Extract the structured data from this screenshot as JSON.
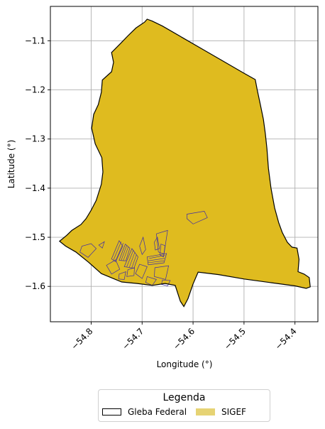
{
  "chart_data": {
    "type": "map",
    "xlabel": "Longitude (°)",
    "ylabel": "Latitude (°)",
    "xlim": [
      -54.88,
      -54.355
    ],
    "ylim": [
      -1.672,
      -1.03
    ],
    "xticks": [
      -54.8,
      -54.7,
      -54.6,
      -54.5,
      -54.4
    ],
    "xtick_labels": [
      "−54.8",
      "−54.7",
      "−54.6",
      "−54.5",
      "−54.4"
    ],
    "yticks": [
      -1.1,
      -1.2,
      -1.3,
      -1.4,
      -1.5,
      -1.6
    ],
    "ytick_labels": [
      "−1.1",
      "−1.2",
      "−1.3",
      "−1.4",
      "−1.5",
      "−1.6"
    ],
    "grid": true,
    "legend_placement": "bottom-center",
    "colors": {
      "sigef_fill": "#dfbb1f",
      "sigef_legend": "#e6d374",
      "boundary": "#000000",
      "parcel_edge": "#3b2aa8",
      "grid": "#b0b0b0"
    },
    "gleba_boundary": [
      [
        -54.69,
        -1.056
      ],
      [
        -54.68,
        -1.06
      ],
      [
        -54.66,
        -1.07
      ],
      [
        -54.62,
        -1.094
      ],
      [
        -54.58,
        -1.118
      ],
      [
        -54.54,
        -1.142
      ],
      [
        -54.5,
        -1.166
      ],
      [
        -54.478,
        -1.179
      ],
      [
        -54.474,
        -1.2
      ],
      [
        -54.468,
        -1.23
      ],
      [
        -54.462,
        -1.26
      ],
      [
        -54.458,
        -1.29
      ],
      [
        -54.455,
        -1.32
      ],
      [
        -54.452,
        -1.36
      ],
      [
        -54.447,
        -1.4
      ],
      [
        -54.44,
        -1.44
      ],
      [
        -54.432,
        -1.47
      ],
      [
        -54.425,
        -1.49
      ],
      [
        -54.415,
        -1.51
      ],
      [
        -54.406,
        -1.52
      ],
      [
        -54.396,
        -1.522
      ],
      [
        -54.392,
        -1.545
      ],
      [
        -54.394,
        -1.57
      ],
      [
        -54.382,
        -1.575
      ],
      [
        -54.372,
        -1.582
      ],
      [
        -54.37,
        -1.601
      ],
      [
        -54.378,
        -1.604
      ],
      [
        -54.4,
        -1.599
      ],
      [
        -54.45,
        -1.592
      ],
      [
        -54.5,
        -1.585
      ],
      [
        -54.55,
        -1.576
      ],
      [
        -54.59,
        -1.571
      ],
      [
        -54.6,
        -1.595
      ],
      [
        -54.61,
        -1.625
      ],
      [
        -54.618,
        -1.641
      ],
      [
        -54.625,
        -1.63
      ],
      [
        -54.635,
        -1.598
      ],
      [
        -54.655,
        -1.594
      ],
      [
        -54.68,
        -1.598
      ],
      [
        -54.71,
        -1.594
      ],
      [
        -54.74,
        -1.591
      ],
      [
        -54.78,
        -1.574
      ],
      [
        -54.805,
        -1.551
      ],
      [
        -54.83,
        -1.53
      ],
      [
        -54.85,
        -1.518
      ],
      [
        -54.862,
        -1.508
      ],
      [
        -54.848,
        -1.496
      ],
      [
        -54.838,
        -1.486
      ],
      [
        -54.82,
        -1.474
      ],
      [
        -54.81,
        -1.462
      ],
      [
        -54.8,
        -1.445
      ],
      [
        -54.79,
        -1.425
      ],
      [
        -54.78,
        -1.392
      ],
      [
        -54.777,
        -1.367
      ],
      [
        -54.779,
        -1.338
      ],
      [
        -54.792,
        -1.31
      ],
      [
        -54.799,
        -1.278
      ],
      [
        -54.795,
        -1.25
      ],
      [
        -54.786,
        -1.23
      ],
      [
        -54.78,
        -1.205
      ],
      [
        -54.778,
        -1.18
      ],
      [
        -54.76,
        -1.163
      ],
      [
        -54.756,
        -1.144
      ],
      [
        -54.76,
        -1.124
      ],
      [
        -54.742,
        -1.105
      ],
      [
        -54.728,
        -1.09
      ],
      [
        -54.712,
        -1.074
      ],
      [
        -54.695,
        -1.062
      ]
    ],
    "parcels": [
      [
        [
          -54.612,
          -1.453
        ],
        [
          -54.578,
          -1.447
        ],
        [
          -54.572,
          -1.46
        ],
        [
          -54.6,
          -1.473
        ],
        [
          -54.612,
          -1.462
        ]
      ],
      [
        [
          -54.8,
          -1.513
        ],
        [
          -54.79,
          -1.523
        ],
        [
          -54.806,
          -1.541
        ],
        [
          -54.822,
          -1.53
        ],
        [
          -54.818,
          -1.518
        ]
      ],
      [
        [
          -54.785,
          -1.516
        ],
        [
          -54.774,
          -1.509
        ],
        [
          -54.778,
          -1.522
        ]
      ],
      [
        [
          -54.76,
          -1.544
        ],
        [
          -54.745,
          -1.507
        ],
        [
          -54.738,
          -1.518
        ],
        [
          -54.752,
          -1.55
        ]
      ],
      [
        [
          -54.745,
          -1.547
        ],
        [
          -54.733,
          -1.514
        ],
        [
          -54.724,
          -1.522
        ],
        [
          -54.732,
          -1.548
        ]
      ],
      [
        [
          -54.735,
          -1.56
        ],
        [
          -54.72,
          -1.523
        ],
        [
          -54.708,
          -1.54
        ],
        [
          -54.716,
          -1.563
        ]
      ],
      [
        [
          -54.77,
          -1.557
        ],
        [
          -54.752,
          -1.546
        ],
        [
          -54.744,
          -1.565
        ],
        [
          -54.76,
          -1.575
        ]
      ],
      [
        [
          -54.705,
          -1.518
        ],
        [
          -54.698,
          -1.5
        ],
        [
          -54.693,
          -1.525
        ],
        [
          -54.7,
          -1.535
        ]
      ],
      [
        [
          -54.69,
          -1.54
        ],
        [
          -54.652,
          -1.533
        ],
        [
          -54.657,
          -1.552
        ],
        [
          -54.688,
          -1.556
        ]
      ],
      [
        [
          -54.672,
          -1.493
        ],
        [
          -54.65,
          -1.486
        ],
        [
          -54.657,
          -1.534
        ],
        [
          -54.668,
          -1.53
        ]
      ],
      [
        [
          -54.676,
          -1.51
        ],
        [
          -54.67,
          -1.5
        ],
        [
          -54.666,
          -1.523
        ],
        [
          -54.674,
          -1.526
        ]
      ],
      [
        [
          -54.705,
          -1.555
        ],
        [
          -54.69,
          -1.56
        ],
        [
          -54.7,
          -1.584
        ],
        [
          -54.713,
          -1.574
        ]
      ],
      [
        [
          -54.675,
          -1.562
        ],
        [
          -54.648,
          -1.558
        ],
        [
          -54.654,
          -1.586
        ],
        [
          -54.676,
          -1.58
        ]
      ],
      [
        [
          -54.69,
          -1.58
        ],
        [
          -54.672,
          -1.586
        ],
        [
          -54.68,
          -1.598
        ],
        [
          -54.693,
          -1.592
        ]
      ],
      [
        [
          -54.66,
          -1.587
        ],
        [
          -54.645,
          -1.588
        ],
        [
          -54.65,
          -1.599
        ],
        [
          -54.662,
          -1.596
        ]
      ],
      [
        [
          -54.728,
          -1.566
        ],
        [
          -54.715,
          -1.562
        ],
        [
          -54.716,
          -1.578
        ],
        [
          -54.73,
          -1.58
        ]
      ],
      [
        [
          -54.663,
          -1.514
        ],
        [
          -54.655,
          -1.517
        ],
        [
          -54.658,
          -1.54
        ],
        [
          -54.665,
          -1.536
        ]
      ],
      [
        [
          -54.745,
          -1.575
        ],
        [
          -54.732,
          -1.57
        ],
        [
          -54.735,
          -1.586
        ],
        [
          -54.746,
          -1.585
        ]
      ]
    ],
    "parcel_hatch": [
      [
        [
          -54.756,
          -1.546
        ],
        [
          -54.741,
          -1.509
        ]
      ],
      [
        [
          -54.752,
          -1.548
        ],
        [
          -54.737,
          -1.512
        ]
      ],
      [
        [
          -54.741,
          -1.547
        ],
        [
          -54.73,
          -1.516
        ]
      ],
      [
        [
          -54.737,
          -1.548
        ],
        [
          -54.727,
          -1.519
        ]
      ],
      [
        [
          -54.73,
          -1.56
        ],
        [
          -54.717,
          -1.526
        ]
      ],
      [
        [
          -54.725,
          -1.561
        ],
        [
          -54.714,
          -1.53
        ]
      ],
      [
        [
          -54.72,
          -1.562
        ],
        [
          -54.711,
          -1.535
        ]
      ],
      [
        [
          -54.686,
          -1.543
        ],
        [
          -54.655,
          -1.537
        ]
      ],
      [
        [
          -54.688,
          -1.548
        ],
        [
          -54.656,
          -1.543
        ]
      ],
      [
        [
          -54.689,
          -1.552
        ],
        [
          -54.657,
          -1.548
        ]
      ]
    ],
    "legend": {
      "title": "Legenda",
      "entries": [
        {
          "label": "Gleba Federal"
        },
        {
          "label": "SIGEF"
        }
      ]
    }
  }
}
